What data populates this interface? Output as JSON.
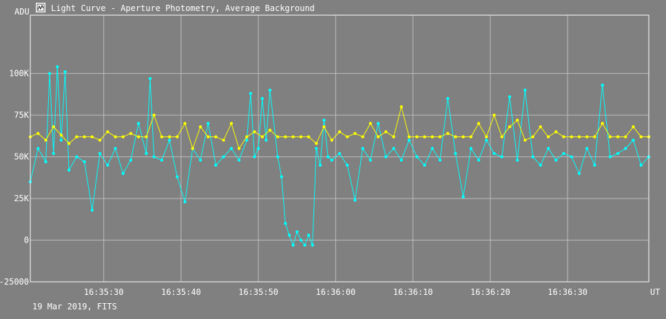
{
  "window": {
    "title": "Light Curve - Aperture Photometry, Average Background",
    "icon": "light-curve-app-icon"
  },
  "footer": {
    "caption": "19 Mar 2019, FITS"
  },
  "colors": {
    "background": "#808080",
    "grid": "#bdbdbd",
    "series_target": "#00ffff",
    "series_comparison": "#ffff00"
  },
  "chart_data": {
    "type": "line",
    "title": "",
    "xlabel": "UT",
    "ylabel": "ADU",
    "xlim": [
      "16:35:20.5",
      "16:36:40.5"
    ],
    "ylim": [
      -25000,
      135000
    ],
    "grid": true,
    "legend": "none",
    "x_ticks": [
      "16:35:30",
      "16:35:40",
      "16:35:50",
      "16:36:00",
      "16:36:10",
      "16:36:20",
      "16:36:30"
    ],
    "y_ticks": [
      "-25000",
      "0",
      "25K",
      "50K",
      "75K",
      "100K"
    ],
    "y_tick_values": [
      -25000,
      0,
      25000,
      50000,
      75000,
      100000
    ],
    "series": [
      {
        "color": "#00ffff",
        "x": [
          "16:35:20.5",
          "16:35:21.5",
          "16:35:22.5",
          "16:35:23.0",
          "16:35:23.5",
          "16:35:24.0",
          "16:35:24.5",
          "16:35:25.0",
          "16:35:25.5",
          "16:35:26.5",
          "16:35:27.5",
          "16:35:28.5",
          "16:35:29.5",
          "16:35:30.5",
          "16:35:31.5",
          "16:35:32.5",
          "16:35:33.5",
          "16:35:34.5",
          "16:35:35.5",
          "16:35:36.0",
          "16:35:36.5",
          "16:35:37.5",
          "16:35:38.5",
          "16:35:39.5",
          "16:35:40.5",
          "16:35:41.5",
          "16:35:42.5",
          "16:35:43.5",
          "16:35:44.5",
          "16:35:45.5",
          "16:35:46.5",
          "16:35:47.5",
          "16:35:48.5",
          "16:35:49.0",
          "16:35:49.5",
          "16:35:50.0",
          "16:35:50.5",
          "16:35:51.0",
          "16:35:51.5",
          "16:35:52.5",
          "16:35:53.0",
          "16:35:53.5",
          "16:35:54.0",
          "16:35:54.5",
          "16:35:55.0",
          "16:35:55.5",
          "16:35:56.0",
          "16:35:56.5",
          "16:35:57.0",
          "16:35:57.5",
          "16:35:58.0",
          "16:35:58.5",
          "16:35:59.0",
          "16:35:59.5",
          "16:36:00.5",
          "16:36:01.5",
          "16:36:02.5",
          "16:36:03.5",
          "16:36:04.5",
          "16:36:05.5",
          "16:36:06.5",
          "16:36:07.5",
          "16:36:08.5",
          "16:36:09.5",
          "16:36:10.5",
          "16:36:11.5",
          "16:36:12.5",
          "16:36:13.5",
          "16:36:14.5",
          "16:36:15.5",
          "16:36:16.5",
          "16:36:17.5",
          "16:36:18.5",
          "16:36:19.5",
          "16:36:20.5",
          "16:36:21.5",
          "16:36:22.5",
          "16:36:23.5",
          "16:36:24.5",
          "16:36:25.5",
          "16:36:26.5",
          "16:36:27.5",
          "16:36:28.5",
          "16:36:29.5",
          "16:36:30.5",
          "16:36:31.5",
          "16:36:32.5",
          "16:36:33.5",
          "16:36:34.5",
          "16:36:35.5",
          "16:36:36.5",
          "16:36:37.5",
          "16:36:38.5",
          "16:36:39.5",
          "16:36:40.5"
        ],
        "y": [
          35000,
          55000,
          47000,
          100000,
          52000,
          104000,
          60000,
          101000,
          42000,
          50000,
          47000,
          18000,
          52000,
          45000,
          55000,
          40000,
          48000,
          70000,
          52000,
          97000,
          50000,
          48000,
          60000,
          38000,
          23000,
          55000,
          48000,
          70000,
          45000,
          50000,
          55000,
          48000,
          60000,
          88000,
          50000,
          55000,
          85000,
          60000,
          90000,
          50000,
          38000,
          10000,
          3000,
          -3000,
          5000,
          0,
          -3000,
          3000,
          -3000,
          55000,
          45000,
          72000,
          50000,
          48000,
          52000,
          45000,
          24000,
          55000,
          48000,
          70000,
          50000,
          55000,
          48000,
          60000,
          50000,
          45000,
          55000,
          48000,
          85000,
          52000,
          26000,
          55000,
          48000,
          60000,
          52000,
          50000,
          86000,
          48000,
          90000,
          50000,
          45000,
          55000,
          48000,
          52000,
          50000,
          40000,
          55000,
          45000,
          93000,
          50000,
          52000,
          55000,
          60000,
          45000,
          50000
        ]
      },
      {
        "color": "#ffff00",
        "x": [
          "16:35:20.5",
          "16:35:21.5",
          "16:35:22.5",
          "16:35:23.5",
          "16:35:24.5",
          "16:35:25.5",
          "16:35:26.5",
          "16:35:27.5",
          "16:35:28.5",
          "16:35:29.5",
          "16:35:30.5",
          "16:35:31.5",
          "16:35:32.5",
          "16:35:33.5",
          "16:35:34.5",
          "16:35:35.5",
          "16:35:36.5",
          "16:35:37.5",
          "16:35:38.5",
          "16:35:39.5",
          "16:35:40.5",
          "16:35:41.5",
          "16:35:42.5",
          "16:35:43.5",
          "16:35:44.5",
          "16:35:45.5",
          "16:35:46.5",
          "16:35:47.5",
          "16:35:48.5",
          "16:35:49.5",
          "16:35:50.5",
          "16:35:51.5",
          "16:35:52.5",
          "16:35:53.5",
          "16:35:54.5",
          "16:35:55.5",
          "16:35:56.5",
          "16:35:57.5",
          "16:35:58.5",
          "16:35:59.5",
          "16:36:00.5",
          "16:36:01.5",
          "16:36:02.5",
          "16:36:03.5",
          "16:36:04.5",
          "16:36:05.5",
          "16:36:06.5",
          "16:36:07.5",
          "16:36:08.5",
          "16:36:09.5",
          "16:36:10.5",
          "16:36:11.5",
          "16:36:12.5",
          "16:36:13.5",
          "16:36:14.5",
          "16:36:15.5",
          "16:36:16.5",
          "16:36:17.5",
          "16:36:18.5",
          "16:36:19.5",
          "16:36:20.5",
          "16:36:21.5",
          "16:36:22.5",
          "16:36:23.5",
          "16:36:24.5",
          "16:36:25.5",
          "16:36:26.5",
          "16:36:27.5",
          "16:36:28.5",
          "16:36:29.5",
          "16:36:30.5",
          "16:36:31.5",
          "16:36:32.5",
          "16:36:33.5",
          "16:36:34.5",
          "16:36:35.5",
          "16:36:36.5",
          "16:36:37.5",
          "16:36:38.5",
          "16:36:39.5",
          "16:36:40.5"
        ],
        "y": [
          62000,
          64000,
          60000,
          68000,
          63000,
          58000,
          62000,
          62000,
          62000,
          60000,
          65000,
          62000,
          62000,
          64000,
          62000,
          62000,
          75000,
          62000,
          62000,
          62000,
          70000,
          55000,
          68000,
          62000,
          62000,
          60000,
          70000,
          55000,
          62000,
          65000,
          62000,
          66000,
          62000,
          62000,
          62000,
          62000,
          62000,
          58000,
          68000,
          60000,
          65000,
          62000,
          64000,
          62000,
          70000,
          62000,
          65000,
          62000,
          80000,
          62000,
          62000,
          62000,
          62000,
          62000,
          64000,
          62000,
          62000,
          62000,
          70000,
          62000,
          75000,
          62000,
          68000,
          72000,
          60000,
          62000,
          68000,
          62000,
          65000,
          62000,
          62000,
          62000,
          62000,
          62000,
          70000,
          62000,
          62000,
          62000,
          68000,
          62000,
          62000
        ]
      }
    ]
  }
}
